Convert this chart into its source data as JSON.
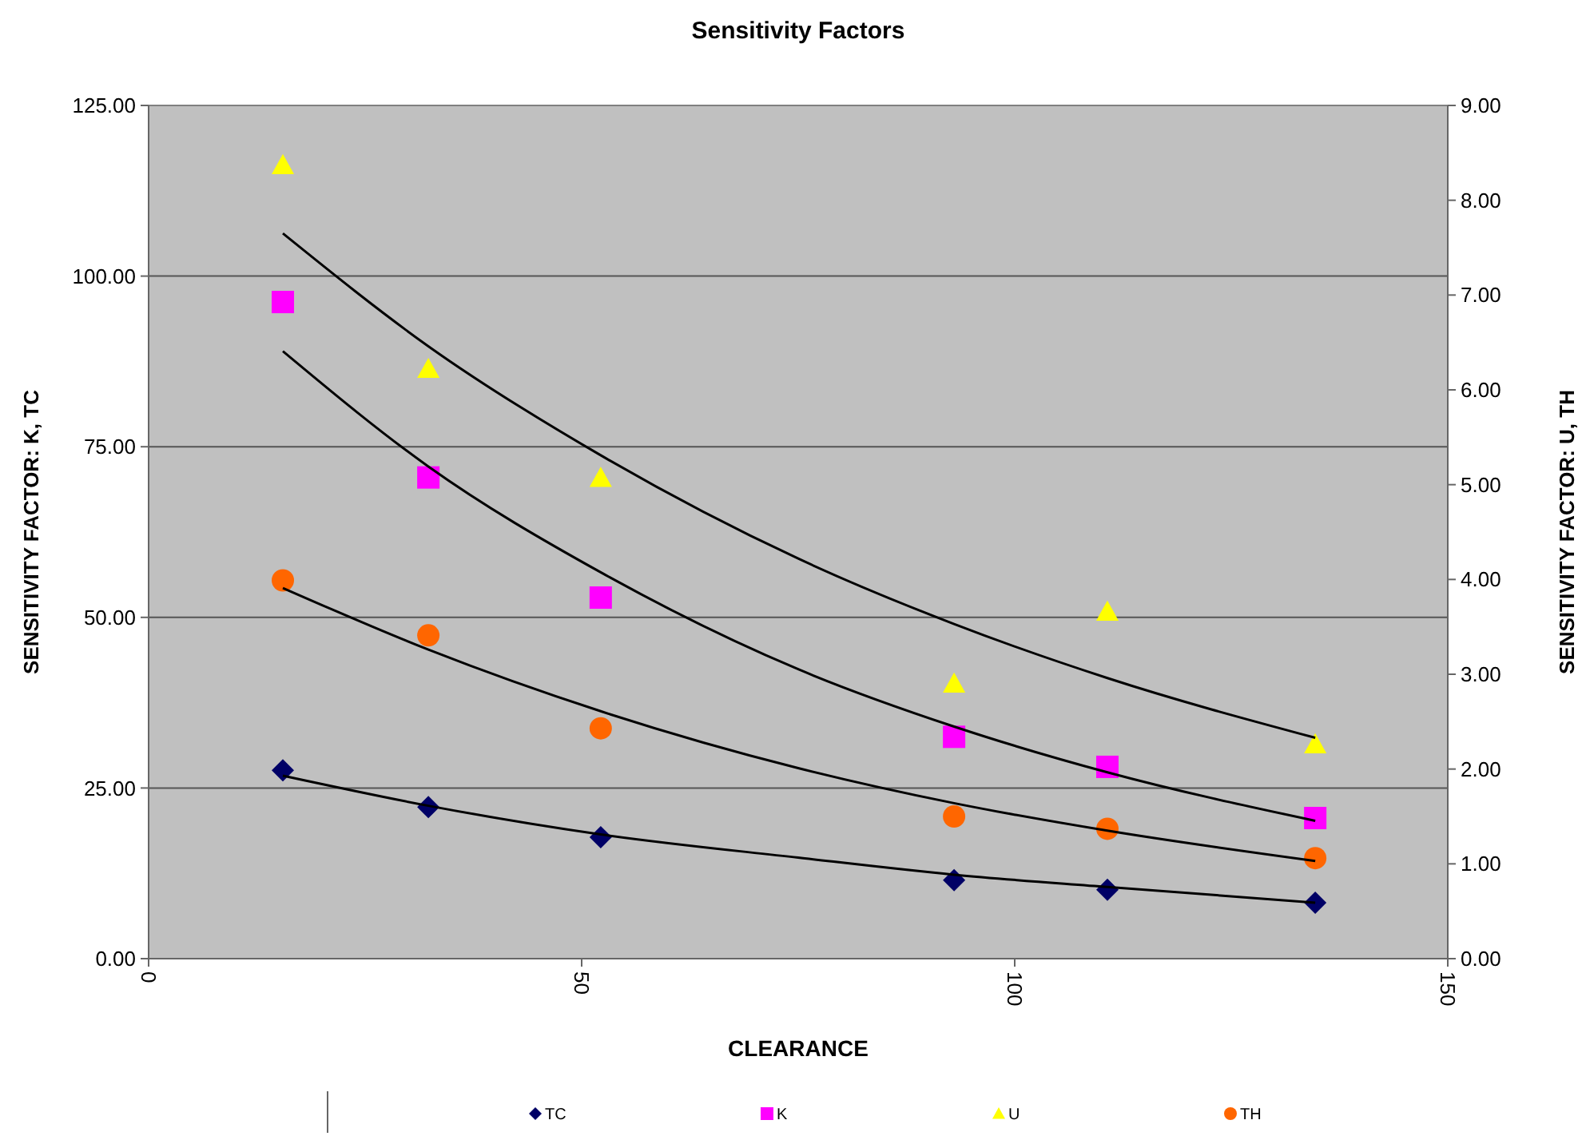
{
  "chart_data": {
    "type": "scatter",
    "title": "Sensitivity Factors",
    "xlabel": "CLEARANCE",
    "ylabel": "SENSITIVITY FACTOR: K, TC",
    "y2label": "SENSITIVITY FACTOR: U, TH",
    "xlim": [
      0,
      150
    ],
    "xticks": [
      0,
      50,
      100,
      150
    ],
    "ylim": [
      0,
      125
    ],
    "yticks": [
      {
        "value": 0,
        "label": "0.00"
      },
      {
        "value": 25,
        "label": "25.00"
      },
      {
        "value": 50,
        "label": "50.00"
      },
      {
        "value": 75,
        "label": "75.00"
      },
      {
        "value": 100,
        "label": "100.00"
      },
      {
        "value": 125,
        "label": "125.00"
      }
    ],
    "y2lim": [
      0,
      9
    ],
    "y2ticks": [
      {
        "value": 0,
        "label": "0.00"
      },
      {
        "value": 1,
        "label": "1.00"
      },
      {
        "value": 2,
        "label": "2.00"
      },
      {
        "value": 3,
        "label": "3.00"
      },
      {
        "value": 4,
        "label": "4.00"
      },
      {
        "value": 5,
        "label": "5.00"
      },
      {
        "value": 6,
        "label": "6.00"
      },
      {
        "value": 7,
        "label": "7.00"
      },
      {
        "value": 8,
        "label": "8.00"
      },
      {
        "value": 9,
        "label": "9.00"
      }
    ],
    "grid": "y",
    "legend": "bottom",
    "series": [
      {
        "name": "TC",
        "color": "#000066",
        "marker": "diamond",
        "x": [
          15.5,
          32.3,
          52.2,
          93,
          110.7,
          134.7
        ],
        "values": [
          27.6,
          22.2,
          17.8,
          11.5,
          10.1,
          8.2
        ]
      },
      {
        "name": "K",
        "color": "#ff00ff",
        "marker": "square",
        "x": [
          15.5,
          32.3,
          52.2,
          93,
          110.7,
          134.7
        ],
        "values": [
          96.2,
          70.5,
          52.9,
          32.5,
          28.1,
          20.6
        ]
      },
      {
        "name": "U",
        "color": "#ffff00",
        "marker": "triangle",
        "axis": "y2",
        "x": [
          15.5,
          32.3,
          52.2,
          93,
          110.7,
          134.7
        ],
        "values": [
          8.37,
          6.22,
          5.07,
          2.9,
          3.66,
          2.26
        ]
      },
      {
        "name": "TH",
        "color": "#ff6600",
        "marker": "circle",
        "axis": "y2",
        "x": [
          15.5,
          32.3,
          52.2,
          93,
          110.7,
          134.7
        ],
        "values": [
          3.99,
          3.41,
          2.43,
          1.5,
          1.37,
          1.06
        ]
      },
      {
        "type": "line",
        "color": "#000000",
        "marker": "none",
        "x": [
          15.5,
          32.3,
          52.2,
          75,
          93,
          110.7,
          134.7
        ],
        "values": [
          26.8,
          22.4,
          18.2,
          14.8,
          12.3,
          10.5,
          8.2
        ]
      },
      {
        "type": "line",
        "color": "#000000",
        "marker": "none",
        "x": [
          15.5,
          32.3,
          52.2,
          75,
          93,
          110.7,
          134.7
        ],
        "values": [
          89.0,
          72.1,
          56.6,
          42.4,
          34.0,
          27.3,
          20.2
        ]
      },
      {
        "type": "line",
        "color": "#000000",
        "marker": "none",
        "axis": "y2",
        "x": [
          15.5,
          32.3,
          52.2,
          75,
          93,
          110.7,
          134.7
        ],
        "values": [
          7.65,
          6.46,
          5.31,
          4.22,
          3.53,
          2.96,
          2.33
        ]
      },
      {
        "type": "line",
        "color": "#000000",
        "marker": "none",
        "axis": "y2",
        "x": [
          15.5,
          32.3,
          52.2,
          75,
          93,
          110.7,
          134.7
        ],
        "values": [
          3.91,
          3.26,
          2.61,
          2.01,
          1.64,
          1.35,
          1.03
        ]
      }
    ]
  }
}
